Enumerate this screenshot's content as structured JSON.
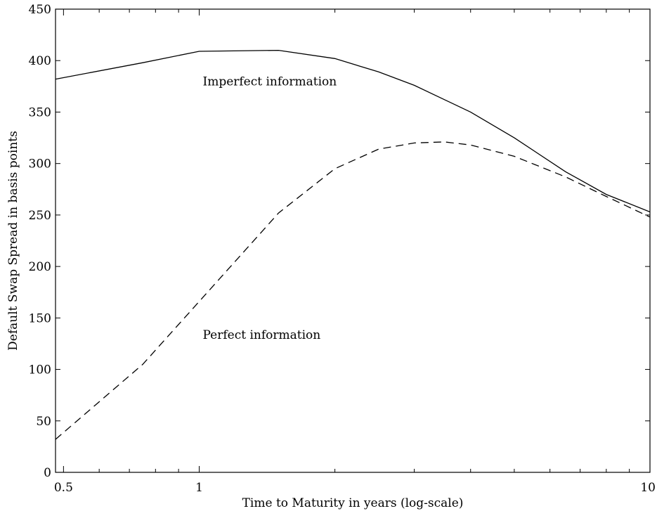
{
  "chart_data": {
    "type": "line",
    "title": "",
    "xlabel": "Time to Maturity in years (log-scale)",
    "ylabel": "Default Swap Spread in basis points",
    "xscale": "log",
    "xlim": [
      0.48,
      10
    ],
    "ylim": [
      0,
      450
    ],
    "xticks": [
      0.5,
      1,
      10
    ],
    "xtick_labels": [
      "0.5",
      "1",
      "10"
    ],
    "yticks": [
      0,
      50,
      100,
      150,
      200,
      250,
      300,
      350,
      400,
      450
    ],
    "grid": false,
    "series": [
      {
        "annotation": "Imperfect information",
        "style": "solid",
        "x": [
          0.48,
          0.75,
          1.0,
          1.5,
          2.0,
          2.5,
          3.0,
          4.0,
          5.0,
          6.5,
          8.0,
          10.0
        ],
        "y": [
          382,
          398,
          409,
          410,
          402,
          389,
          376,
          350,
          325,
          292,
          270,
          253
        ]
      },
      {
        "annotation": "Perfect information",
        "style": "dashed",
        "x": [
          0.48,
          0.75,
          1.0,
          1.5,
          2.0,
          2.5,
          3.0,
          3.5,
          4.0,
          5.0,
          6.5,
          8.0,
          10.0
        ],
        "y": [
          32,
          105,
          166,
          252,
          295,
          314,
          320,
          321,
          318,
          307,
          287,
          268,
          248
        ]
      }
    ],
    "annotations": [
      {
        "text": "Imperfect information",
        "x": 1.0,
        "y": 380
      },
      {
        "text": "Perfect information",
        "x": 1.0,
        "y": 134
      }
    ]
  }
}
